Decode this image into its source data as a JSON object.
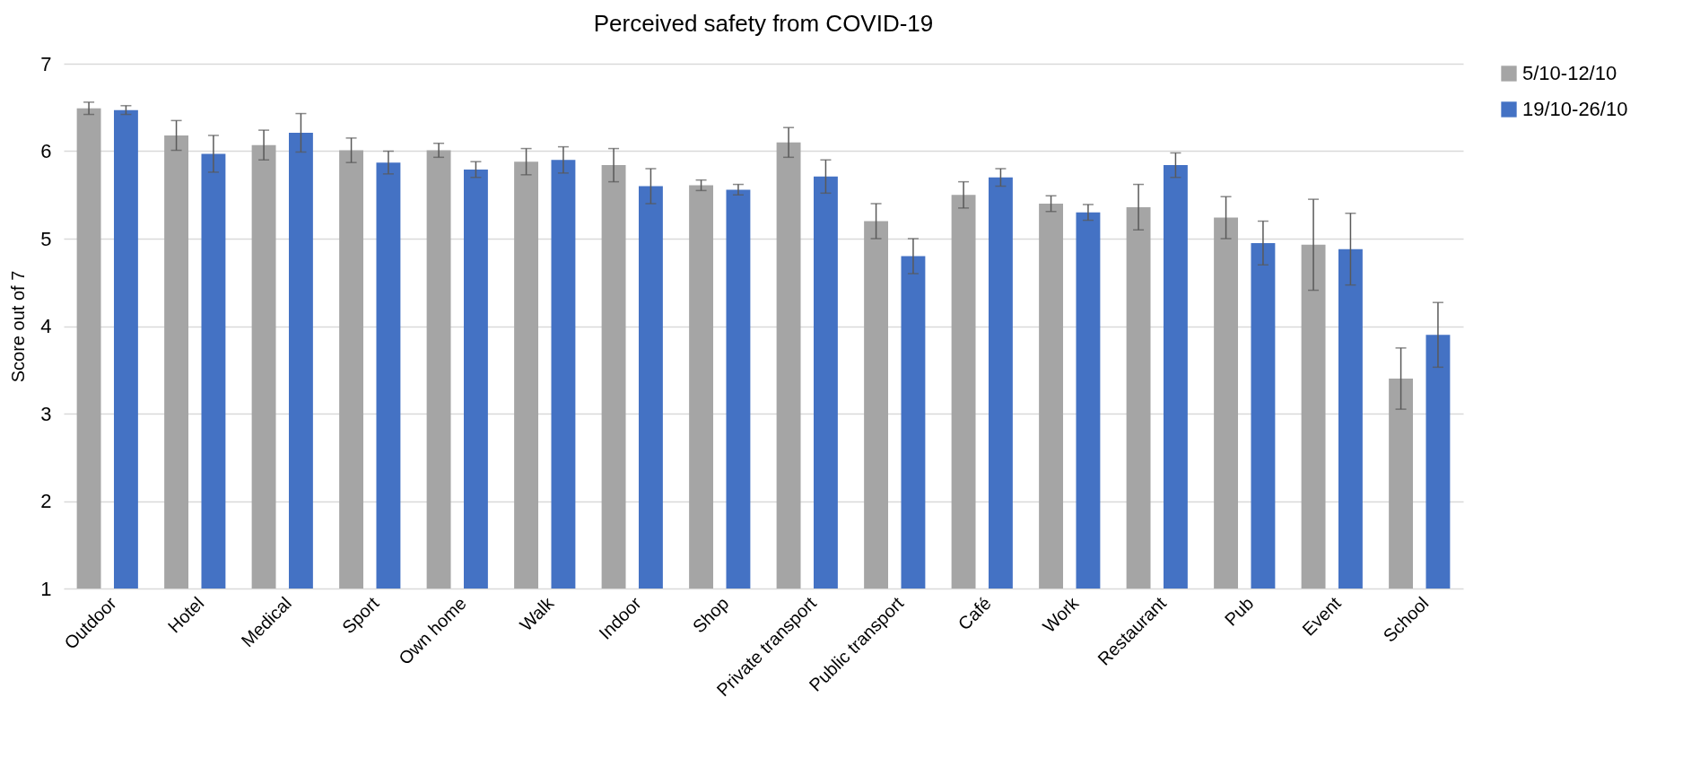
{
  "chart_data": {
    "type": "bar",
    "title": "Perceived safety from COVID-19",
    "ylabel": "Score out of 7",
    "categories": [
      "Outdoor",
      "Hotel",
      "Medical",
      "Sport",
      "Own home",
      "Walk",
      "Indoor",
      "Shop",
      "Private transport",
      "Public transport",
      "Café",
      "Work",
      "Restaurant",
      "Pub",
      "Event",
      "School"
    ],
    "series": [
      {
        "name": "5/10-12/10",
        "color": "#a5a5a5",
        "values": [
          6.49,
          6.18,
          6.07,
          6.01,
          6.01,
          5.88,
          5.84,
          5.61,
          6.1,
          5.2,
          5.5,
          5.4,
          5.36,
          5.24,
          4.93,
          3.4
        ],
        "errors": [
          0.07,
          0.17,
          0.17,
          0.14,
          0.08,
          0.15,
          0.19,
          0.06,
          0.17,
          0.2,
          0.15,
          0.09,
          0.26,
          0.24,
          0.52,
          0.35
        ]
      },
      {
        "name": "19/10-26/10",
        "color": "#4472c4",
        "values": [
          6.47,
          5.97,
          6.21,
          5.87,
          5.79,
          5.9,
          5.6,
          5.56,
          5.71,
          4.8,
          5.7,
          5.3,
          5.84,
          4.95,
          4.88,
          3.9
        ],
        "errors": [
          0.05,
          0.21,
          0.22,
          0.13,
          0.09,
          0.15,
          0.2,
          0.06,
          0.19,
          0.2,
          0.1,
          0.09,
          0.14,
          0.25,
          0.41,
          0.37
        ]
      }
    ],
    "ylim": [
      1,
      7
    ],
    "yticks": [
      1,
      2,
      3,
      4,
      5,
      6,
      7
    ],
    "grid": "y",
    "legend": "right"
  }
}
